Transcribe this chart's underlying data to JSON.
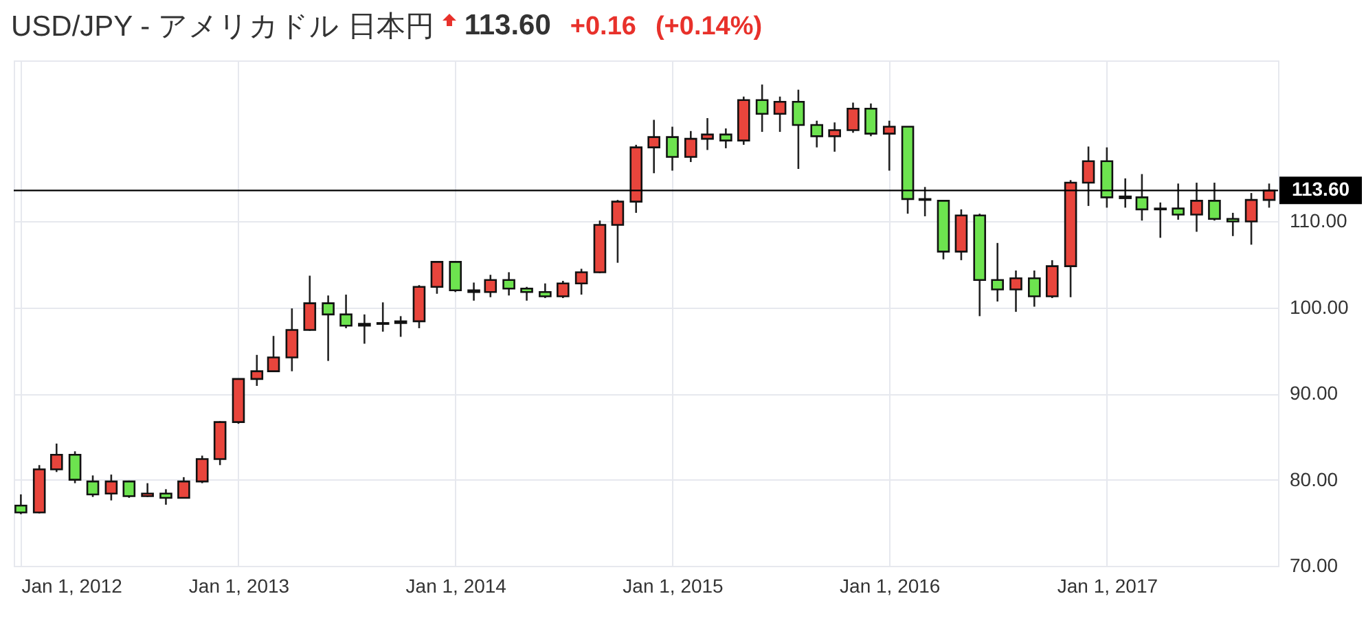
{
  "chart_data": {
    "type": "candlestick",
    "title": "USD/JPY - アメリカドル 日本円",
    "annotations": [
      "113.60",
      "+0.16",
      "(+0.14%)"
    ],
    "x": [
      "2012-01",
      "2012-02",
      "2012-03",
      "2012-04",
      "2012-05",
      "2012-06",
      "2012-07",
      "2012-08",
      "2012-09",
      "2012-10",
      "2012-11",
      "2012-12",
      "2013-01",
      "2013-02",
      "2013-03",
      "2013-04",
      "2013-05",
      "2013-06",
      "2013-07",
      "2013-08",
      "2013-09",
      "2013-10",
      "2013-11",
      "2013-12",
      "2014-01",
      "2014-02",
      "2014-03",
      "2014-04",
      "2014-05",
      "2014-06",
      "2014-07",
      "2014-08",
      "2014-09",
      "2014-10",
      "2014-11",
      "2014-12",
      "2015-01",
      "2015-02",
      "2015-03",
      "2015-04",
      "2015-05",
      "2015-06",
      "2015-07",
      "2015-08",
      "2015-09",
      "2015-10",
      "2015-11",
      "2015-12",
      "2016-01",
      "2016-02",
      "2016-03",
      "2016-04",
      "2016-05",
      "2016-06",
      "2016-07",
      "2016-08",
      "2016-09",
      "2016-10",
      "2016-11",
      "2016-12",
      "2017-01",
      "2017-02",
      "2017-03",
      "2017-04",
      "2017-05",
      "2017-06",
      "2017-07",
      "2017-08",
      "2017-09",
      "2017-10"
    ],
    "ohlc": [
      [
        77.0,
        78.3,
        76.0,
        76.2
      ],
      [
        76.2,
        81.7,
        76.1,
        81.2
      ],
      [
        81.2,
        84.2,
        80.9,
        82.9
      ],
      [
        82.9,
        83.3,
        79.6,
        80.0
      ],
      [
        79.8,
        80.5,
        78.0,
        78.3
      ],
      [
        78.4,
        80.6,
        77.6,
        79.8
      ],
      [
        79.8,
        79.9,
        77.9,
        78.1
      ],
      [
        78.1,
        79.6,
        78.0,
        78.4
      ],
      [
        78.4,
        78.9,
        77.1,
        77.9
      ],
      [
        77.9,
        80.3,
        77.9,
        79.8
      ],
      [
        79.8,
        82.8,
        79.6,
        82.4
      ],
      [
        82.4,
        86.8,
        81.7,
        86.7
      ],
      [
        86.7,
        91.7,
        86.5,
        91.7
      ],
      [
        91.7,
        94.5,
        90.9,
        92.6
      ],
      [
        92.6,
        96.7,
        92.5,
        94.2
      ],
      [
        94.2,
        99.9,
        92.6,
        97.4
      ],
      [
        97.4,
        103.7,
        97.3,
        100.5
      ],
      [
        100.5,
        101.4,
        93.8,
        99.2
      ],
      [
        99.2,
        101.5,
        97.6,
        97.9
      ],
      [
        97.9,
        99.2,
        95.8,
        98.1
      ],
      [
        98.1,
        100.6,
        97.2,
        98.2
      ],
      [
        98.2,
        99.0,
        96.6,
        98.4
      ],
      [
        98.4,
        102.6,
        97.6,
        102.4
      ],
      [
        102.4,
        105.4,
        101.6,
        105.3
      ],
      [
        105.3,
        105.4,
        101.8,
        102.0
      ],
      [
        102.0,
        102.9,
        100.8,
        101.8
      ],
      [
        101.8,
        103.8,
        101.2,
        103.2
      ],
      [
        103.2,
        104.1,
        101.4,
        102.2
      ],
      [
        102.2,
        102.4,
        100.8,
        101.8
      ],
      [
        101.8,
        102.8,
        101.1,
        101.3
      ],
      [
        101.3,
        103.1,
        101.1,
        102.8
      ],
      [
        102.8,
        104.5,
        101.5,
        104.1
      ],
      [
        104.1,
        110.1,
        104.0,
        109.6
      ],
      [
        109.6,
        112.5,
        105.2,
        112.3
      ],
      [
        112.3,
        118.9,
        111.0,
        118.6
      ],
      [
        118.6,
        121.8,
        115.6,
        119.8
      ],
      [
        119.8,
        121.0,
        115.9,
        117.5
      ],
      [
        117.5,
        120.5,
        116.9,
        119.6
      ],
      [
        119.6,
        122.0,
        118.3,
        120.1
      ],
      [
        120.1,
        120.8,
        118.5,
        119.4
      ],
      [
        119.4,
        124.5,
        118.9,
        124.1
      ],
      [
        124.1,
        125.9,
        120.4,
        122.5
      ],
      [
        122.5,
        124.5,
        120.4,
        123.9
      ],
      [
        123.9,
        125.3,
        116.1,
        121.2
      ],
      [
        121.2,
        121.7,
        118.6,
        119.9
      ],
      [
        119.9,
        121.5,
        118.1,
        120.6
      ],
      [
        120.6,
        123.8,
        120.3,
        123.1
      ],
      [
        123.1,
        123.7,
        119.9,
        120.2
      ],
      [
        120.2,
        121.7,
        115.9,
        121.0
      ],
      [
        121.0,
        121.0,
        110.9,
        112.6
      ],
      [
        112.6,
        114.0,
        110.6,
        112.5
      ],
      [
        112.4,
        112.4,
        105.6,
        106.5
      ],
      [
        106.5,
        111.4,
        105.5,
        110.7
      ],
      [
        110.7,
        110.9,
        99.0,
        103.2
      ],
      [
        103.2,
        107.5,
        100.7,
        102.1
      ],
      [
        102.1,
        104.3,
        99.5,
        103.4
      ],
      [
        103.4,
        104.3,
        100.1,
        101.3
      ],
      [
        101.3,
        105.5,
        101.1,
        104.8
      ],
      [
        104.8,
        114.8,
        101.2,
        114.5
      ],
      [
        114.5,
        118.7,
        111.8,
        117.0
      ],
      [
        117.0,
        118.6,
        111.6,
        112.8
      ],
      [
        112.9,
        115.0,
        111.6,
        112.7
      ],
      [
        112.8,
        115.5,
        110.1,
        111.4
      ],
      [
        111.4,
        112.2,
        108.1,
        111.5
      ],
      [
        111.5,
        114.4,
        110.2,
        110.8
      ],
      [
        110.8,
        114.5,
        108.8,
        112.4
      ],
      [
        112.4,
        114.5,
        110.1,
        110.3
      ],
      [
        110.3,
        111.0,
        108.3,
        110.0
      ],
      [
        110.0,
        113.3,
        107.3,
        112.5
      ],
      [
        112.5,
        114.4,
        111.6,
        113.6
      ]
    ],
    "colors": [
      "#6de34f",
      "#e8453c",
      "#e8453c",
      "#6de34f",
      "#6de34f",
      "#e8453c",
      "#6de34f",
      "#e8453c",
      "#6de34f",
      "#e8453c",
      "#e8453c",
      "#e8453c",
      "#e8453c",
      "#e8453c",
      "#e8453c",
      "#e8453c",
      "#e8453c",
      "#6de34f",
      "#6de34f",
      "#e8453c",
      "#e8453c",
      "#e8453c",
      "#e8453c",
      "#e8453c",
      "#6de34f",
      "#6de34f",
      "#e8453c",
      "#6de34f",
      "#6de34f",
      "#6de34f",
      "#e8453c",
      "#e8453c",
      "#e8453c",
      "#e8453c",
      "#e8453c",
      "#e8453c",
      "#6de34f",
      "#e8453c",
      "#e8453c",
      "#6de34f",
      "#e8453c",
      "#6de34f",
      "#e8453c",
      "#6de34f",
      "#6de34f",
      "#e8453c",
      "#e8453c",
      "#6de34f",
      "#e8453c",
      "#6de34f",
      "#6de34f",
      "#6de34f",
      "#e8453c",
      "#6de34f",
      "#6de34f",
      "#e8453c",
      "#6de34f",
      "#e8453c",
      "#e8453c",
      "#e8453c",
      "#6de34f",
      "#6de34f",
      "#6de34f",
      "#e8453c",
      "#6de34f",
      "#e8453c",
      "#6de34f",
      "#6de34f",
      "#e8453c",
      "#e8453c"
    ],
    "xlim": [
      "2011-12-20",
      "2017-10-16"
    ],
    "xticks": [
      {
        "value": "2012-01-01",
        "label": "Jan 1, 2012"
      },
      {
        "value": "2013-01-01",
        "label": "Jan 1, 2013"
      },
      {
        "value": "2014-01-01",
        "label": "Jan 1, 2014"
      },
      {
        "value": "2015-01-01",
        "label": "Jan 1, 2015"
      },
      {
        "value": "2016-01-01",
        "label": "Jan 1, 2016"
      },
      {
        "value": "2017-01-01",
        "label": "Jan 1, 2017"
      }
    ],
    "ylim": [
      70,
      128.7
    ],
    "yticks": [
      {
        "value": 70,
        "label": "70.00"
      },
      {
        "value": 80,
        "label": "80.00"
      },
      {
        "value": 90,
        "label": "90.00"
      },
      {
        "value": 100,
        "label": "100.00"
      },
      {
        "value": 110,
        "label": "110.00"
      }
    ],
    "ref_lines": [
      {
        "axis": "y",
        "value": 113.6,
        "label": "113.60",
        "color": "#000000"
      }
    ],
    "grid": true
  }
}
